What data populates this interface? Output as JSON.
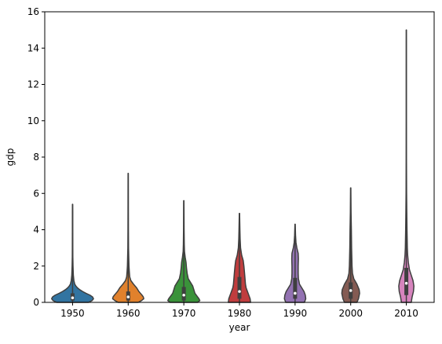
{
  "chart_data": {
    "type": "violin",
    "title": "",
    "xlabel": "year",
    "ylabel": "gdp",
    "ylim": [
      0,
      16
    ],
    "yticks": [
      0,
      2,
      4,
      6,
      8,
      10,
      12,
      14,
      16
    ],
    "grid": false,
    "legend": "none",
    "categories": [
      "1950",
      "1960",
      "1970",
      "1980",
      "1990",
      "2000",
      "2010"
    ],
    "colors": [
      "#3274a1",
      "#e1812c",
      "#3a923a",
      "#c03d3e",
      "#9372b2",
      "#845b53",
      "#d684bd"
    ],
    "series": [
      {
        "category": "1950",
        "stats": {
          "min": 0.0,
          "q1": 0.1,
          "median": 0.25,
          "q3": 0.5,
          "max": 5.4
        },
        "density": [
          [
            0.0,
            0.72
          ],
          [
            0.1,
            0.88
          ],
          [
            0.2,
            0.94
          ],
          [
            0.3,
            0.9
          ],
          [
            0.4,
            0.78
          ],
          [
            0.5,
            0.6
          ],
          [
            0.6,
            0.45
          ],
          [
            0.7,
            0.32
          ],
          [
            0.8,
            0.22
          ],
          [
            0.9,
            0.15
          ],
          [
            1.0,
            0.1
          ],
          [
            1.2,
            0.06
          ],
          [
            1.5,
            0.035
          ],
          [
            2.0,
            0.02
          ],
          [
            2.5,
            0.012
          ],
          [
            3.0,
            0.01
          ],
          [
            4.0,
            0.008
          ],
          [
            5.0,
            0.007
          ],
          [
            5.4,
            0.004
          ]
        ]
      },
      {
        "category": "1960",
        "stats": {
          "min": 0.0,
          "q1": 0.1,
          "median": 0.3,
          "q3": 0.6,
          "max": 7.1
        },
        "density": [
          [
            0.0,
            0.45
          ],
          [
            0.1,
            0.6
          ],
          [
            0.2,
            0.7
          ],
          [
            0.3,
            0.68
          ],
          [
            0.4,
            0.62
          ],
          [
            0.5,
            0.55
          ],
          [
            0.6,
            0.48
          ],
          [
            0.8,
            0.38
          ],
          [
            1.0,
            0.24
          ],
          [
            1.2,
            0.12
          ],
          [
            1.4,
            0.07
          ],
          [
            1.7,
            0.05
          ],
          [
            2.0,
            0.035
          ],
          [
            3.0,
            0.015
          ],
          [
            4.0,
            0.01
          ],
          [
            5.0,
            0.008
          ],
          [
            6.0,
            0.007
          ],
          [
            7.1,
            0.005
          ]
        ]
      },
      {
        "category": "1970",
        "stats": {
          "min": 0.0,
          "q1": 0.1,
          "median": 0.4,
          "q3": 0.85,
          "max": 5.6
        },
        "density": [
          [
            0.0,
            0.62
          ],
          [
            0.1,
            0.72
          ],
          [
            0.2,
            0.68
          ],
          [
            0.3,
            0.62
          ],
          [
            0.5,
            0.5
          ],
          [
            0.7,
            0.45
          ],
          [
            0.9,
            0.4
          ],
          [
            1.1,
            0.3
          ],
          [
            1.3,
            0.2
          ],
          [
            1.6,
            0.15
          ],
          [
            1.9,
            0.12
          ],
          [
            2.2,
            0.1
          ],
          [
            2.5,
            0.06
          ],
          [
            2.8,
            0.03
          ],
          [
            3.2,
            0.02
          ],
          [
            4.0,
            0.012
          ],
          [
            5.0,
            0.008
          ],
          [
            5.6,
            0.005
          ]
        ]
      },
      {
        "category": "1980",
        "stats": {
          "min": 0.0,
          "q1": 0.2,
          "median": 0.6,
          "q3": 1.4,
          "max": 4.9
        },
        "density": [
          [
            0.0,
            0.5
          ],
          [
            0.2,
            0.48
          ],
          [
            0.4,
            0.42
          ],
          [
            0.6,
            0.36
          ],
          [
            0.8,
            0.3
          ],
          [
            1.0,
            0.27
          ],
          [
            1.3,
            0.25
          ],
          [
            1.6,
            0.23
          ],
          [
            2.0,
            0.2
          ],
          [
            2.3,
            0.17
          ],
          [
            2.6,
            0.1
          ],
          [
            3.0,
            0.05
          ],
          [
            3.5,
            0.03
          ],
          [
            4.0,
            0.02
          ],
          [
            4.5,
            0.012
          ],
          [
            4.9,
            0.006
          ]
        ]
      },
      {
        "category": "1990",
        "stats": {
          "min": 0.0,
          "q1": 0.2,
          "median": 0.5,
          "q3": 1.35,
          "max": 4.3
        },
        "density": [
          [
            0.0,
            0.42
          ],
          [
            0.2,
            0.48
          ],
          [
            0.4,
            0.46
          ],
          [
            0.6,
            0.4
          ],
          [
            0.8,
            0.3
          ],
          [
            1.0,
            0.2
          ],
          [
            1.3,
            0.15
          ],
          [
            1.6,
            0.14
          ],
          [
            2.0,
            0.14
          ],
          [
            2.4,
            0.15
          ],
          [
            2.7,
            0.14
          ],
          [
            3.0,
            0.08
          ],
          [
            3.3,
            0.04
          ],
          [
            3.7,
            0.02
          ],
          [
            4.3,
            0.006
          ]
        ]
      },
      {
        "category": "2000",
        "stats": {
          "min": 0.0,
          "q1": 0.2,
          "median": 0.65,
          "q3": 1.1,
          "max": 6.3
        },
        "density": [
          [
            0.0,
            0.28
          ],
          [
            0.2,
            0.35
          ],
          [
            0.5,
            0.4
          ],
          [
            0.7,
            0.38
          ],
          [
            1.0,
            0.28
          ],
          [
            1.3,
            0.14
          ],
          [
            1.6,
            0.08
          ],
          [
            2.0,
            0.06
          ],
          [
            2.5,
            0.05
          ],
          [
            3.0,
            0.04
          ],
          [
            3.5,
            0.035
          ],
          [
            4.0,
            0.03
          ],
          [
            4.5,
            0.022
          ],
          [
            5.0,
            0.015
          ],
          [
            6.3,
            0.006
          ]
        ]
      },
      {
        "category": "2010",
        "stats": {
          "min": 0.0,
          "q1": 0.4,
          "median": 1.05,
          "q3": 1.9,
          "max": 15.0
        },
        "density": [
          [
            0.0,
            0.22
          ],
          [
            0.3,
            0.26
          ],
          [
            0.6,
            0.32
          ],
          [
            0.9,
            0.34
          ],
          [
            1.2,
            0.3
          ],
          [
            1.5,
            0.22
          ],
          [
            1.8,
            0.14
          ],
          [
            2.2,
            0.09
          ],
          [
            2.6,
            0.06
          ],
          [
            3.0,
            0.045
          ],
          [
            4.0,
            0.03
          ],
          [
            5.0,
            0.02
          ],
          [
            6.0,
            0.012
          ],
          [
            8.0,
            0.006
          ],
          [
            10.0,
            0.004
          ],
          [
            12.0,
            0.004
          ],
          [
            15.0,
            0.003
          ]
        ]
      }
    ]
  }
}
